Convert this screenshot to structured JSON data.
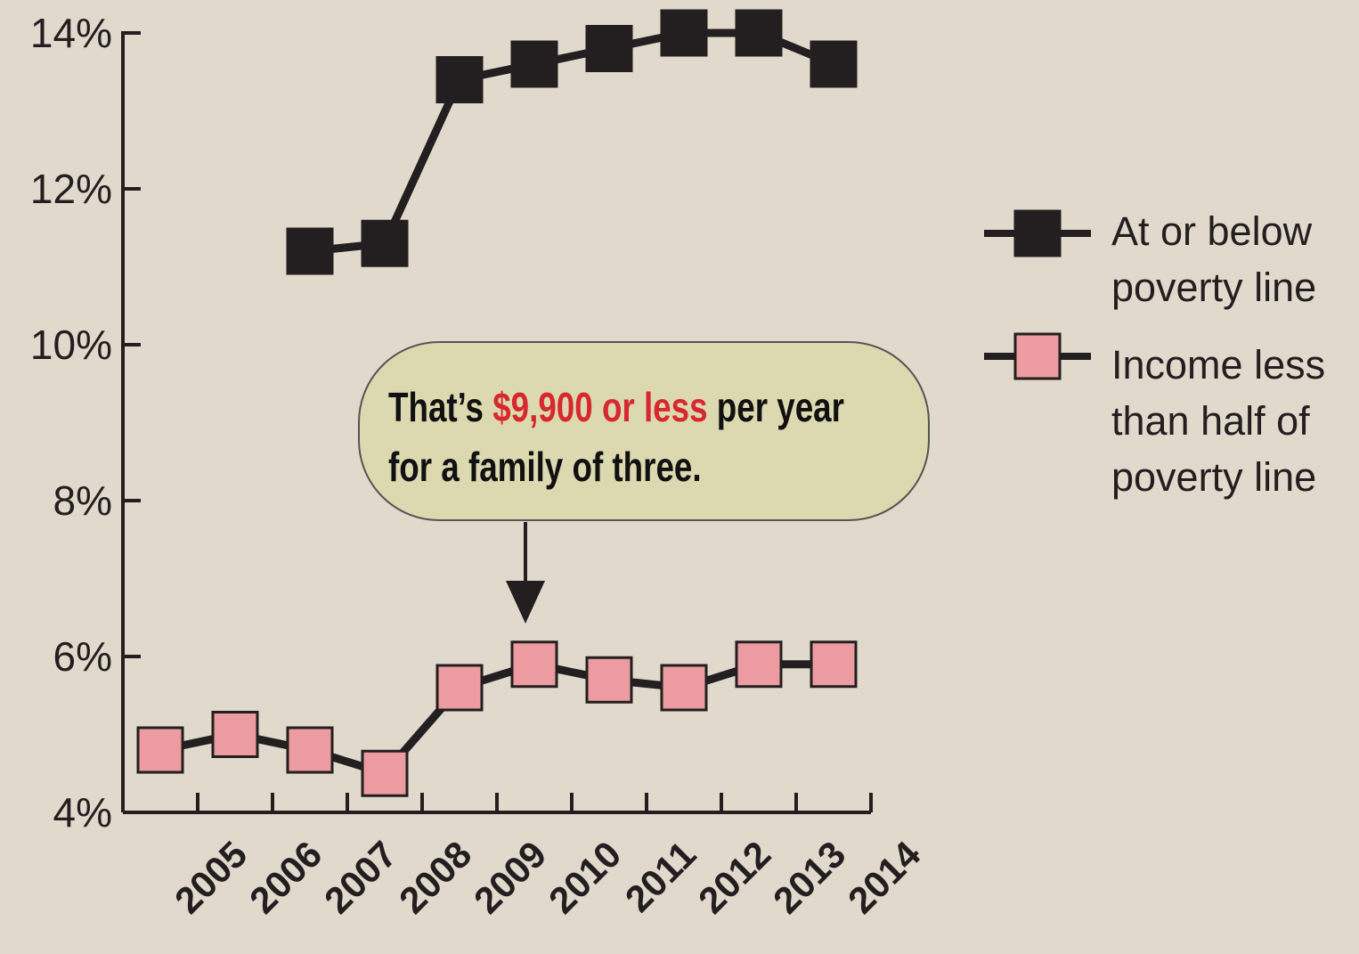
{
  "chart_data": {
    "type": "line",
    "categories": [
      "2005",
      "2006",
      "2007",
      "2008",
      "2009",
      "2010",
      "2011",
      "2012",
      "2013",
      "2014"
    ],
    "series": [
      {
        "name": "At or below poverty line",
        "color": "#231f20",
        "values": [
          null,
          null,
          11.2,
          11.3,
          13.4,
          13.6,
          13.8,
          14.0,
          14.0,
          13.6
        ]
      },
      {
        "name": "Income less than half of poverty line",
        "color": "#ec9ba0",
        "values": [
          4.8,
          5.0,
          4.8,
          4.5,
          5.6,
          5.9,
          5.7,
          5.6,
          5.9,
          5.9
        ]
      }
    ],
    "ylim": [
      4,
      14
    ],
    "yticks": [
      {
        "value": 4,
        "label": "4%"
      },
      {
        "value": 6,
        "label": "6%"
      },
      {
        "value": 8,
        "label": "8%"
      },
      {
        "value": 10,
        "label": "10%"
      },
      {
        "value": 12,
        "label": "12%"
      },
      {
        "value": 14,
        "label": "14%"
      }
    ],
    "legend": "right",
    "annotation": {
      "parts": [
        "That’s",
        "$9,900 or less",
        "per year"
      ],
      "line2": "for a family of three.",
      "highlight_color": "#d7282f"
    }
  }
}
